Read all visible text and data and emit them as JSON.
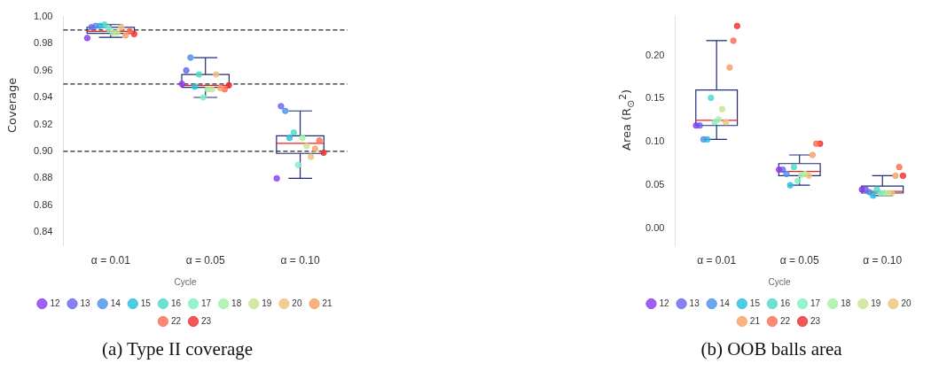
{
  "chart_data": [
    {
      "type": "box",
      "title": "(a) Type II coverage",
      "ylabel": "Coverage",
      "categories": [
        "α = 0.01",
        "α = 0.05",
        "α = 0.10"
      ],
      "ylim": [
        0.83,
        1.0
      ],
      "yticks": [
        0.84,
        0.86,
        0.88,
        {
          "value": 0.9,
          "label": "0.90"
        },
        0.92,
        0.94,
        0.96,
        0.98,
        {
          "value": 1.0,
          "label": "1.00"
        }
      ],
      "grid": false,
      "legend": "bottom",
      "legend_title": "Cycle",
      "marker": "circle",
      "boxes": [
        {
          "low": 0.9845,
          "q1": 0.9875,
          "median": 0.989,
          "q3": 0.992,
          "high": 0.994
        },
        {
          "low": 0.94,
          "q1": 0.9475,
          "median": 0.949,
          "q3": 0.957,
          "high": 0.9695
        },
        {
          "low": 0.88,
          "q1": 0.8985,
          "median": 0.906,
          "q3": 0.9115,
          "high": 0.93
        }
      ],
      "ref_lines": [
        {
          "axis": "y",
          "value": 0.99,
          "color": "#222222",
          "line_style": "dashed"
        },
        {
          "axis": "y",
          "value": 0.95,
          "color": "#222222",
          "line_style": "dashed"
        },
        {
          "axis": "y",
          "value": 0.9,
          "color": "#222222",
          "line_style": "dashed"
        }
      ],
      "series": [
        {
          "type": "scatter",
          "name": "12",
          "color": "#8b3cf0",
          "values": [
            0.984,
            0.95,
            0.88
          ]
        },
        {
          "type": "scatter",
          "name": "13",
          "color": "#6a66ee",
          "values": [
            0.992,
            0.96,
            0.9335
          ]
        },
        {
          "type": "scatter",
          "name": "14",
          "color": "#4a92ea",
          "values": [
            0.993,
            0.9695,
            0.93
          ]
        },
        {
          "type": "scatter",
          "name": "15",
          "color": "#26bfe0",
          "values": [
            0.993,
            0.948,
            0.91
          ]
        },
        {
          "type": "scatter",
          "name": "16",
          "color": "#4ddcc8",
          "values": [
            0.994,
            0.957,
            0.914
          ]
        },
        {
          "type": "scatter",
          "name": "17",
          "color": "#7ff0c4",
          "values": [
            0.991,
            0.94,
            0.89
          ]
        },
        {
          "type": "scatter",
          "name": "18",
          "color": "#a6f0a6",
          "values": [
            0.988,
            0.946,
            0.91
          ]
        },
        {
          "type": "scatter",
          "name": "19",
          "color": "#c8e48e",
          "values": [
            0.988,
            0.946,
            0.904
          ]
        },
        {
          "type": "scatter",
          "name": "20",
          "color": "#f0c27e",
          "values": [
            0.992,
            0.957,
            0.896
          ]
        },
        {
          "type": "scatter",
          "name": "21",
          "color": "#f7a064",
          "values": [
            0.986,
            0.947,
            0.902
          ]
        },
        {
          "type": "scatter",
          "name": "22",
          "color": "#fb6e50",
          "values": [
            0.989,
            0.946,
            0.908
          ]
        },
        {
          "type": "scatter",
          "name": "23",
          "color": "#f03030",
          "values": [
            0.987,
            0.949,
            0.899
          ]
        }
      ]
    },
    {
      "type": "box",
      "title": "(b) OOB balls area",
      "ylabel": "Area (R$_{⊙}$$^{2}$)",
      "categories": [
        "α = 0.01",
        "α = 0.05",
        "α = 0.10"
      ],
      "ylim": [
        -0.02,
        0.245
      ],
      "yticks": [
        {
          "value": 0,
          "label": "0.00"
        },
        0.05,
        {
          "value": 0.1,
          "label": "0.10"
        },
        0.15,
        {
          "value": 0.2,
          "label": "0.20"
        }
      ],
      "grid": false,
      "legend": "bottom",
      "legend_title": "Cycle",
      "marker": "circle",
      "boxes": [
        {
          "low": 0.103,
          "q1": 0.119,
          "median": 0.125,
          "q3": 0.16,
          "high": 0.217
        },
        {
          "low": 0.05,
          "q1": 0.061,
          "median": 0.066,
          "q3": 0.075,
          "high": 0.085
        },
        {
          "low": 0.038,
          "q1": 0.041,
          "median": 0.043,
          "q3": 0.049,
          "high": 0.061
        }
      ],
      "series": [
        {
          "type": "scatter",
          "name": "12",
          "color": "#8b3cf0",
          "values": [
            0.119,
            0.068,
            0.045
          ]
        },
        {
          "type": "scatter",
          "name": "13",
          "color": "#6a66ee",
          "values": [
            0.119,
            0.068,
            0.045
          ]
        },
        {
          "type": "scatter",
          "name": "14",
          "color": "#4a92ea",
          "values": [
            0.103,
            0.063,
            0.042
          ]
        },
        {
          "type": "scatter",
          "name": "15",
          "color": "#26bfe0",
          "values": [
            0.103,
            0.05,
            0.038
          ]
        },
        {
          "type": "scatter",
          "name": "16",
          "color": "#4ddcc8",
          "values": [
            0.151,
            0.071,
            0.045
          ]
        },
        {
          "type": "scatter",
          "name": "17",
          "color": "#7ff0c4",
          "values": [
            0.123,
            0.055,
            0.041
          ]
        },
        {
          "type": "scatter",
          "name": "18",
          "color": "#a6f0a6",
          "values": [
            0.126,
            0.062,
            0.041
          ]
        },
        {
          "type": "scatter",
          "name": "19",
          "color": "#c8e48e",
          "values": [
            0.138,
            0.063,
            0.041
          ]
        },
        {
          "type": "scatter",
          "name": "20",
          "color": "#f0c27e",
          "values": [
            0.123,
            0.061,
            0.041
          ]
        },
        {
          "type": "scatter",
          "name": "21",
          "color": "#f7a064",
          "values": [
            0.186,
            0.085,
            0.061
          ]
        },
        {
          "type": "scatter",
          "name": "22",
          "color": "#fb6e50",
          "values": [
            0.217,
            0.098,
            0.071
          ]
        },
        {
          "type": "scatter",
          "name": "23",
          "color": "#f03030",
          "values": [
            0.234,
            0.098,
            0.061
          ]
        }
      ]
    }
  ]
}
